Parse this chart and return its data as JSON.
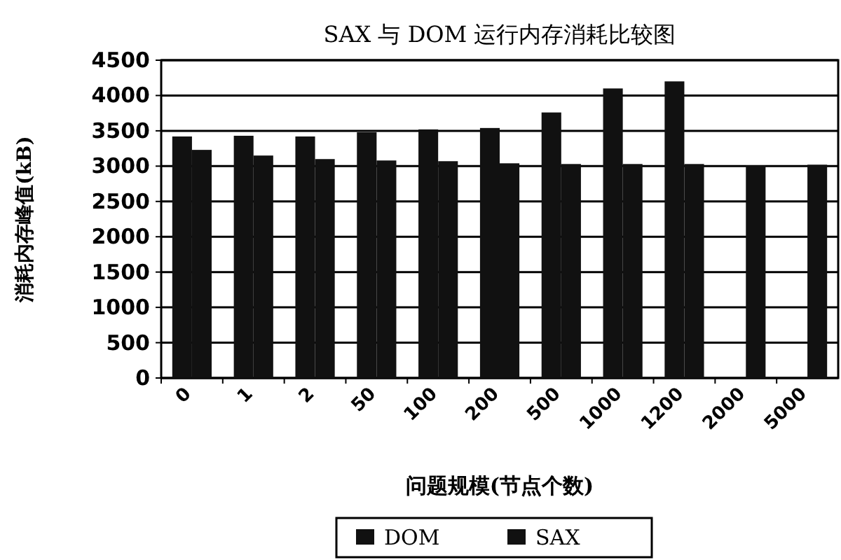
{
  "chart_data": {
    "type": "bar",
    "title": "SAX 与 DOM 运行内存消耗比较图",
    "xlabel": "问题规模(节点个数)",
    "ylabel": "消耗内存峰值(kB)",
    "categories": [
      "0",
      "1",
      "2",
      "50",
      "100",
      "200",
      "500",
      "1000",
      "1200",
      "2000",
      "5000"
    ],
    "series": [
      {
        "name": "DOM",
        "color": "#111111",
        "values": [
          3420,
          3430,
          3420,
          3480,
          3520,
          3540,
          3760,
          4100,
          4200,
          null,
          null
        ]
      },
      {
        "name": "SAX",
        "color": "#111111",
        "values": [
          3230,
          3150,
          3100,
          3080,
          3070,
          3040,
          3030,
          3030,
          3030,
          3010,
          3020
        ]
      }
    ],
    "ylim": [
      0,
      4500
    ],
    "yticks": [
      0,
      500,
      1000,
      1500,
      2000,
      2500,
      3000,
      3500,
      4000,
      4500
    ],
    "grid": "y",
    "legend": "bottom"
  }
}
